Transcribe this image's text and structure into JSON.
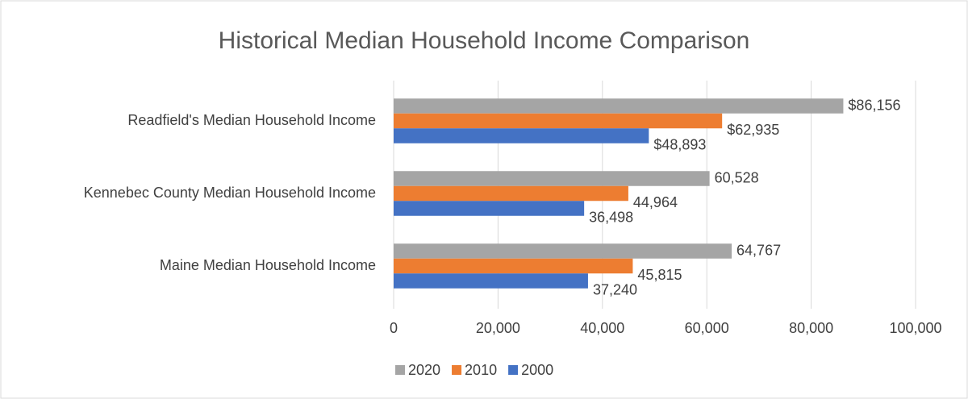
{
  "chart_data": {
    "type": "hbar",
    "title": "Historical Median Household Income Comparison",
    "categories": [
      "Readfield's Median Household Income",
      "Kennebec County Median Household Income",
      "Maine Median Household Income"
    ],
    "series": [
      {
        "name": "2020",
        "color": "#a5a5a5",
        "values": [
          86156,
          60528,
          64767
        ],
        "value_labels": [
          "$86,156",
          "60,528",
          "64,767"
        ]
      },
      {
        "name": "2010",
        "color": "#ed7d31",
        "values": [
          62935,
          44964,
          45815
        ],
        "value_labels": [
          "$62,935",
          "44,964",
          "45,815"
        ]
      },
      {
        "name": "2000",
        "color": "#4472c4",
        "values": [
          48893,
          36498,
          37240
        ],
        "value_labels": [
          "$48,893",
          "36,498",
          "37,240"
        ]
      }
    ],
    "xlim": [
      0,
      100000
    ],
    "xticks": [
      0,
      {
        "value": 20000,
        "label": "20,000"
      },
      {
        "value": 40000,
        "label": "40,000"
      },
      {
        "value": 60000,
        "label": "60,000"
      },
      {
        "value": 80000,
        "label": "80,000"
      },
      {
        "value": 100000,
        "label": "100,000"
      }
    ],
    "grid": true,
    "legend": "bottom"
  }
}
